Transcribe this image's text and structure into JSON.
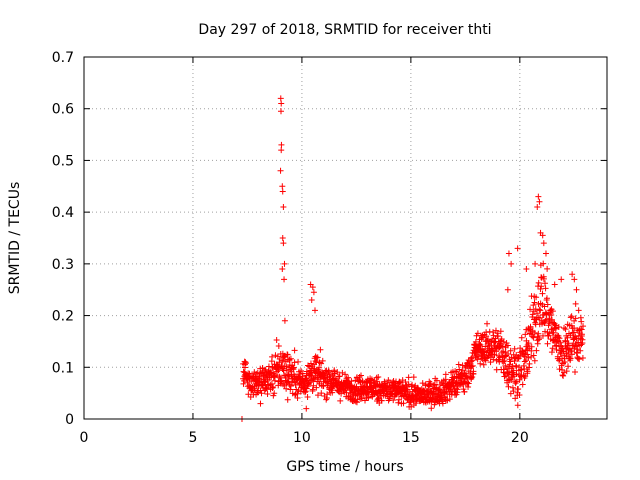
{
  "chart_data": {
    "type": "scatter",
    "title": "Day 297 of 2018, SRMTID for receiver thti",
    "xlabel": "GPS time / hours",
    "ylabel": "SRMTID / TECUs",
    "xlim": [
      0,
      24
    ],
    "ylim": [
      0,
      0.7
    ],
    "xticks": [
      0,
      5,
      10,
      15,
      20
    ],
    "xtick_labels": [
      "0",
      "5",
      "10",
      "15",
      "20"
    ],
    "yticks": [
      0,
      0.1,
      0.2,
      0.3,
      0.4,
      0.5,
      0.6,
      0.7
    ],
    "ytick_labels": [
      "0",
      "0.1",
      "0.2",
      "0.3",
      "0.4",
      "0.5",
      "0.6",
      "0.7"
    ],
    "grid": true,
    "marker": "+",
    "marker_color": "#ff0000",
    "series": [
      {
        "name": "SRMTID",
        "envelope": {
          "description": "approximate trend (center) and spread of the dense point cloud, in data units",
          "x": [
            7.3,
            7.6,
            8.0,
            8.5,
            9.0,
            9.5,
            10.0,
            10.5,
            11.0,
            12.0,
            13.0,
            14.0,
            14.8,
            15.5,
            16.5,
            17.5,
            18.0,
            18.5,
            19.0,
            19.5,
            20.0,
            20.5,
            21.0,
            21.5,
            22.0,
            22.5,
            22.9
          ],
          "center": [
            0.1,
            0.07,
            0.07,
            0.08,
            0.1,
            0.09,
            0.07,
            0.09,
            0.08,
            0.06,
            0.06,
            0.055,
            0.05,
            0.045,
            0.055,
            0.08,
            0.13,
            0.14,
            0.14,
            0.1,
            0.09,
            0.15,
            0.24,
            0.17,
            0.12,
            0.16,
            0.15
          ],
          "spread": [
            0.04,
            0.03,
            0.04,
            0.05,
            0.06,
            0.05,
            0.04,
            0.05,
            0.04,
            0.03,
            0.03,
            0.03,
            0.03,
            0.025,
            0.03,
            0.04,
            0.04,
            0.04,
            0.05,
            0.06,
            0.06,
            0.08,
            0.1,
            0.07,
            0.06,
            0.07,
            0.05
          ]
        },
        "peaks": [
          {
            "x": 9.03,
            "y": 0.62
          },
          {
            "x": 9.05,
            "y": 0.61
          },
          {
            "x": 9.04,
            "y": 0.595
          },
          {
            "x": 9.06,
            "y": 0.53
          },
          {
            "x": 9.05,
            "y": 0.52
          },
          {
            "x": 9.02,
            "y": 0.48
          },
          {
            "x": 9.1,
            "y": 0.45
          },
          {
            "x": 9.12,
            "y": 0.44
          },
          {
            "x": 9.15,
            "y": 0.41
          },
          {
            "x": 9.12,
            "y": 0.35
          },
          {
            "x": 9.15,
            "y": 0.34
          },
          {
            "x": 9.2,
            "y": 0.3
          },
          {
            "x": 9.1,
            "y": 0.29
          },
          {
            "x": 9.18,
            "y": 0.27
          },
          {
            "x": 9.22,
            "y": 0.19
          },
          {
            "x": 10.4,
            "y": 0.26
          },
          {
            "x": 10.5,
            "y": 0.255
          },
          {
            "x": 10.55,
            "y": 0.245
          },
          {
            "x": 10.45,
            "y": 0.23
          },
          {
            "x": 10.6,
            "y": 0.21
          },
          {
            "x": 19.5,
            "y": 0.32
          },
          {
            "x": 19.6,
            "y": 0.3
          },
          {
            "x": 19.45,
            "y": 0.25
          },
          {
            "x": 19.9,
            "y": 0.33
          },
          {
            "x": 20.3,
            "y": 0.29
          },
          {
            "x": 20.85,
            "y": 0.43
          },
          {
            "x": 20.9,
            "y": 0.42
          },
          {
            "x": 20.8,
            "y": 0.41
          },
          {
            "x": 20.95,
            "y": 0.36
          },
          {
            "x": 21.05,
            "y": 0.355
          },
          {
            "x": 21.1,
            "y": 0.34
          },
          {
            "x": 21.2,
            "y": 0.32
          },
          {
            "x": 20.7,
            "y": 0.3
          },
          {
            "x": 21.6,
            "y": 0.26
          },
          {
            "x": 21.9,
            "y": 0.27
          },
          {
            "x": 22.4,
            "y": 0.28
          },
          {
            "x": 22.5,
            "y": 0.27
          },
          {
            "x": 22.6,
            "y": 0.25
          },
          {
            "x": 22.7,
            "y": 0.21
          },
          {
            "x": 7.25,
            "y": 0.0
          },
          {
            "x": 10.2,
            "y": 0.02
          }
        ]
      }
    ]
  }
}
